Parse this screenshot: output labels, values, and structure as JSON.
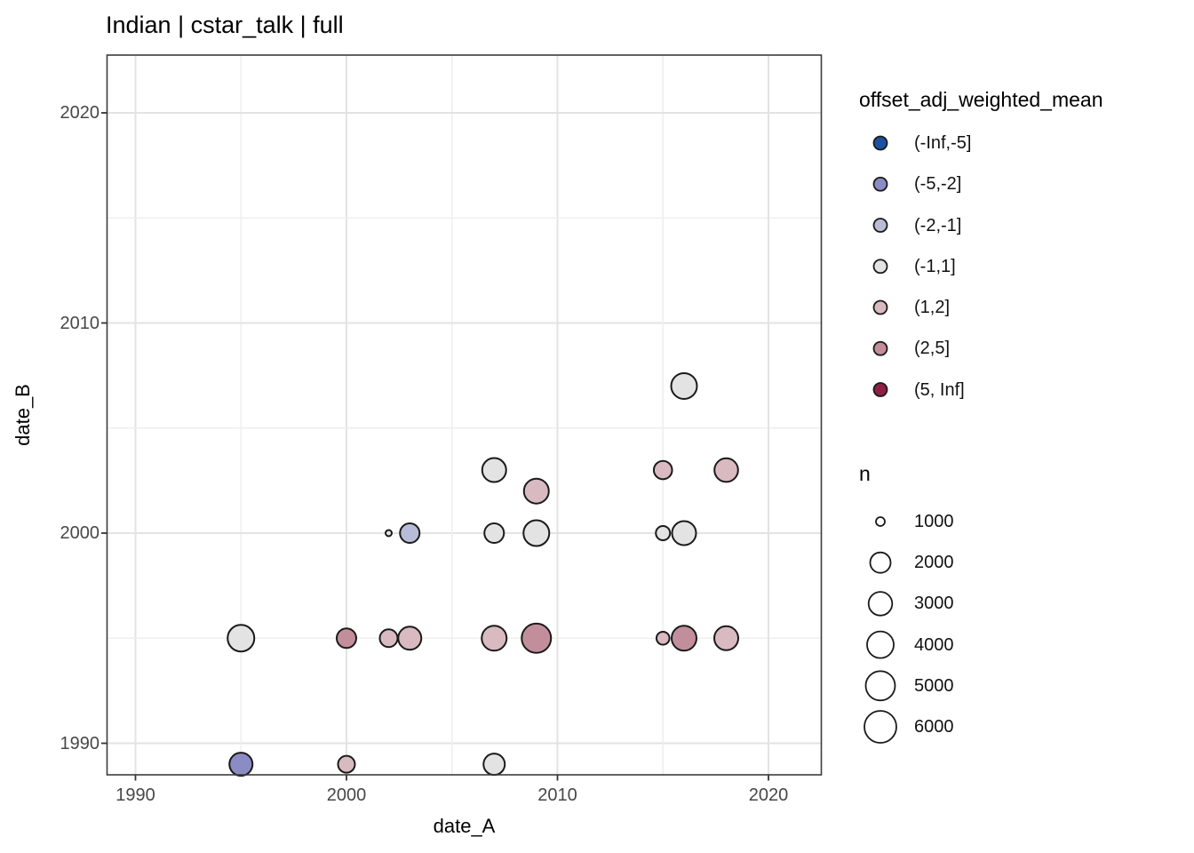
{
  "title": "Indian | cstar_talk | full",
  "x_axis": {
    "label": "date_A",
    "ticks": [
      "1990",
      "2000",
      "2010",
      "2020"
    ]
  },
  "y_axis": {
    "label": "date_B",
    "ticks": [
      "1990",
      "2000",
      "2010",
      "2020"
    ]
  },
  "legend_color": {
    "title": "offset_adj_weighted_mean",
    "items": [
      {
        "label": "(-Inf,-5]",
        "color": "#1d50a0"
      },
      {
        "label": "(-5,-2]",
        "color": "#8a8cc3"
      },
      {
        "label": "(-2,-1]",
        "color": "#b9bcd7"
      },
      {
        "label": "(-1,1]",
        "color": "#e4e3e3"
      },
      {
        "label": "(1,2]",
        "color": "#d9bac1"
      },
      {
        "label": "(2,5]",
        "color": "#c28e9b"
      },
      {
        "label": "(5, Inf]",
        "color": "#8e2045"
      }
    ]
  },
  "legend_size": {
    "title": "n",
    "items": [
      {
        "label": "1000",
        "r": 5
      },
      {
        "label": "2000",
        "r": 11.5
      },
      {
        "label": "3000",
        "r": 13.3
      },
      {
        "label": "4000",
        "r": 15
      },
      {
        "label": "5000",
        "r": 16.5
      },
      {
        "label": "6000",
        "r": 18
      }
    ]
  },
  "chart_data": {
    "type": "scatter",
    "title": "Indian | cstar_talk | full",
    "xlabel": "date_A",
    "ylabel": "date_B",
    "xlim": [
      1988.6,
      2022.6
    ],
    "ylim": [
      1988.5,
      2022.7
    ],
    "x_ticks": [
      1990,
      2000,
      2010,
      2020
    ],
    "y_ticks": [
      1990,
      2000,
      2010,
      2020
    ],
    "grid": "light grey major gridlines every 10 years with minor lines every 5 years",
    "legend_position": "right",
    "color_variable": "offset_adj_weighted_mean",
    "size_variable": "n",
    "points": [
      {
        "x": 1995,
        "y": 1989,
        "bin": "(-5,-2]",
        "n": 3600,
        "r": 13
      },
      {
        "x": 2000,
        "y": 1989,
        "bin": "(1,2]",
        "n": 2300,
        "r": 9.5
      },
      {
        "x": 2007,
        "y": 1989,
        "bin": "(-1,1]",
        "n": 3200,
        "r": 12
      },
      {
        "x": 1995,
        "y": 1995,
        "bin": "(-1,1]",
        "n": 4500,
        "r": 15
      },
      {
        "x": 2000,
        "y": 1995,
        "bin": "(2,5]",
        "n": 2800,
        "r": 11
      },
      {
        "x": 2002,
        "y": 1995,
        "bin": "(1,2]",
        "n": 2400,
        "r": 10
      },
      {
        "x": 2003,
        "y": 1995,
        "bin": "(1,2]",
        "n": 3600,
        "r": 13
      },
      {
        "x": 2007,
        "y": 1995,
        "bin": "(1,2]",
        "n": 4000,
        "r": 14
      },
      {
        "x": 2009,
        "y": 1995,
        "bin": "(2,5]",
        "n": 5200,
        "r": 16.5
      },
      {
        "x": 2015,
        "y": 1995,
        "bin": "(1,2]",
        "n": 1600,
        "r": 7.3
      },
      {
        "x": 2016,
        "y": 1995,
        "bin": "(2,5]",
        "n": 4000,
        "r": 14
      },
      {
        "x": 2018,
        "y": 1995,
        "bin": "(1,2]",
        "n": 3800,
        "r": 13.5
      },
      {
        "x": 2002,
        "y": 2000,
        "bin": "(-1,1]",
        "n": 700,
        "r": 3.5
      },
      {
        "x": 2003,
        "y": 2000,
        "bin": "(-2,-1]",
        "n": 2800,
        "r": 11
      },
      {
        "x": 2007,
        "y": 2000,
        "bin": "(-1,1]",
        "n": 2800,
        "r": 11
      },
      {
        "x": 2009,
        "y": 2000,
        "bin": "(-1,1]",
        "n": 4200,
        "r": 14.5
      },
      {
        "x": 2015,
        "y": 2000,
        "bin": "(-1,1]",
        "n": 1800,
        "r": 8
      },
      {
        "x": 2016,
        "y": 2000,
        "bin": "(-1,1]",
        "n": 3800,
        "r": 13.5
      },
      {
        "x": 2009,
        "y": 2002,
        "bin": "(1,2]",
        "n": 4000,
        "r": 14
      },
      {
        "x": 2007,
        "y": 2003,
        "bin": "(-1,1]",
        "n": 3800,
        "r": 13.5
      },
      {
        "x": 2015,
        "y": 2003,
        "bin": "(1,2]",
        "n": 2500,
        "r": 10.3
      },
      {
        "x": 2018,
        "y": 2003,
        "bin": "(1,2]",
        "n": 3700,
        "r": 13.3
      },
      {
        "x": 2016,
        "y": 2007,
        "bin": "(-1,1]",
        "n": 4200,
        "r": 14.5
      }
    ]
  }
}
